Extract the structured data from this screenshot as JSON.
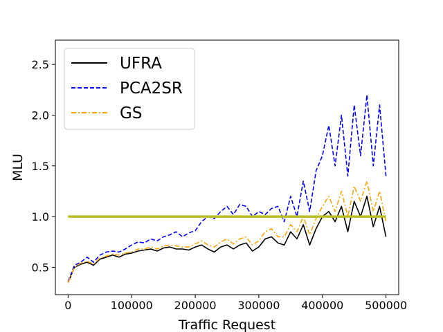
{
  "chart_data": {
    "type": "line",
    "xlabel": "Traffic Request",
    "ylabel": "MLU",
    "xlim": [
      -20000,
      520000
    ],
    "ylim": [
      0.23,
      2.74
    ],
    "x_ticks": [
      0,
      100000,
      200000,
      300000,
      400000,
      500000
    ],
    "x_tick_labels": [
      "0",
      "100000",
      "200000",
      "300000",
      "400000",
      "500000"
    ],
    "y_ticks": [
      0.5,
      1.0,
      1.5,
      2.0,
      2.5
    ],
    "y_tick_labels": [
      "0.5",
      "1.0",
      "1.5",
      "2.0",
      "2.5"
    ],
    "legend_position": "upper-left",
    "grid": false,
    "reference_line": {
      "y": 1.0,
      "x_range": [
        0,
        500000
      ],
      "color": "#bcbd22"
    },
    "series": [
      {
        "name": "UFRA",
        "color": "#000000",
        "style": "solid",
        "x": [
          0,
          10000,
          20000,
          30000,
          40000,
          50000,
          60000,
          70000,
          80000,
          90000,
          100000,
          110000,
          120000,
          130000,
          140000,
          150000,
          160000,
          170000,
          180000,
          190000,
          200000,
          210000,
          220000,
          230000,
          240000,
          250000,
          260000,
          270000,
          280000,
          290000,
          300000,
          310000,
          320000,
          330000,
          340000,
          350000,
          360000,
          370000,
          380000,
          390000,
          400000,
          410000,
          420000,
          430000,
          440000,
          450000,
          460000,
          470000,
          480000,
          490000,
          500000
        ],
        "values": [
          0.35,
          0.5,
          0.53,
          0.55,
          0.52,
          0.58,
          0.6,
          0.62,
          0.6,
          0.63,
          0.64,
          0.66,
          0.67,
          0.68,
          0.66,
          0.69,
          0.7,
          0.68,
          0.68,
          0.67,
          0.7,
          0.72,
          0.68,
          0.65,
          0.7,
          0.72,
          0.68,
          0.72,
          0.74,
          0.66,
          0.7,
          0.78,
          0.8,
          0.74,
          0.72,
          0.85,
          0.78,
          0.92,
          0.72,
          0.88,
          1.0,
          1.05,
          0.95,
          1.1,
          0.85,
          1.15,
          1.0,
          1.2,
          0.9,
          1.1,
          0.8
        ]
      },
      {
        "name": "PCA2SR",
        "color": "#0000ff",
        "style": "dashed",
        "x": [
          0,
          10000,
          20000,
          30000,
          40000,
          50000,
          60000,
          70000,
          80000,
          90000,
          100000,
          110000,
          120000,
          130000,
          140000,
          150000,
          160000,
          170000,
          180000,
          190000,
          200000,
          210000,
          220000,
          230000,
          240000,
          250000,
          260000,
          270000,
          280000,
          290000,
          300000,
          310000,
          320000,
          330000,
          340000,
          350000,
          360000,
          370000,
          380000,
          390000,
          400000,
          410000,
          420000,
          430000,
          440000,
          450000,
          460000,
          470000,
          480000,
          490000,
          500000
        ],
        "values": [
          0.36,
          0.52,
          0.55,
          0.6,
          0.55,
          0.62,
          0.65,
          0.66,
          0.65,
          0.68,
          0.72,
          0.75,
          0.74,
          0.78,
          0.76,
          0.8,
          0.82,
          0.85,
          0.8,
          0.84,
          0.86,
          0.95,
          1.0,
          0.98,
          1.05,
          1.1,
          1.02,
          1.12,
          1.1,
          1.0,
          1.05,
          1.02,
          1.08,
          1.1,
          0.95,
          1.2,
          1.0,
          1.35,
          1.05,
          1.45,
          1.6,
          1.9,
          1.5,
          2.0,
          1.4,
          2.1,
          1.6,
          2.2,
          1.5,
          2.1,
          1.4
        ]
      },
      {
        "name": "GS",
        "color": "#ffa500",
        "style": "dashdot",
        "x": [
          0,
          10000,
          20000,
          30000,
          40000,
          50000,
          60000,
          70000,
          80000,
          90000,
          100000,
          110000,
          120000,
          130000,
          140000,
          150000,
          160000,
          170000,
          180000,
          190000,
          200000,
          210000,
          220000,
          230000,
          240000,
          250000,
          260000,
          270000,
          280000,
          290000,
          300000,
          310000,
          320000,
          330000,
          340000,
          350000,
          360000,
          370000,
          380000,
          390000,
          400000,
          410000,
          420000,
          430000,
          440000,
          450000,
          460000,
          470000,
          480000,
          490000,
          500000
        ],
        "values": [
          0.35,
          0.5,
          0.54,
          0.56,
          0.53,
          0.59,
          0.61,
          0.63,
          0.62,
          0.64,
          0.65,
          0.68,
          0.68,
          0.7,
          0.68,
          0.71,
          0.72,
          0.71,
          0.7,
          0.7,
          0.73,
          0.76,
          0.72,
          0.7,
          0.75,
          0.78,
          0.73,
          0.78,
          0.8,
          0.72,
          0.76,
          0.85,
          0.88,
          0.8,
          0.8,
          0.92,
          0.85,
          1.0,
          0.82,
          0.98,
          1.1,
          1.2,
          1.05,
          1.25,
          1.0,
          1.3,
          1.15,
          1.35,
          1.05,
          1.25,
          0.95
        ]
      }
    ]
  }
}
